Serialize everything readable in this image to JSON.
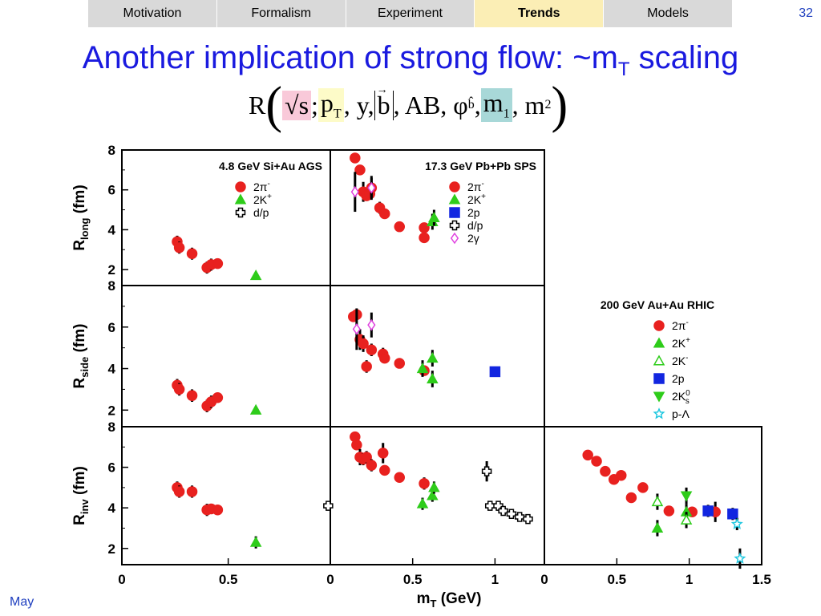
{
  "nav": {
    "tabs": [
      "Motivation",
      "Formalism",
      "Experiment",
      "Trends",
      "Models"
    ],
    "active": "Trends"
  },
  "page_number": "32",
  "title": {
    "main": "Another implication of strong flow: ~m",
    "sub": "T",
    "tail": " scaling"
  },
  "formula": {
    "R": "R",
    "sqrt_s": "√s",
    "sep": ";",
    "pT": "p",
    "pT_sub": "T",
    "rest1": ", y, ",
    "b": "b",
    "rest2": ", AB, φ",
    "phi_sub": "b̂",
    "comma": ",",
    "m1": "m",
    "m1_sub": "1",
    "m2": ", m",
    "m2_sub": "2",
    "colors": {
      "sqrt_s": "#f9c9d9",
      "pT": "#fdfbc8",
      "m1": "#a8d8d8"
    }
  },
  "footer": "May",
  "chart_data": {
    "type": "scatter",
    "xlabel": "m",
    "xlabel_sub": "T",
    "xlabel_unit": " (GeV)",
    "ylabels": [
      {
        "main": "R",
        "sub": "long",
        "unit": " (fm)"
      },
      {
        "main": "R",
        "sub": "side",
        "unit": " (fm)"
      },
      {
        "main": "R",
        "sub": "inv",
        "unit": " (fm)"
      }
    ],
    "ylim": [
      1.2,
      8
    ],
    "yticks": [
      "2",
      "4",
      "6",
      "8"
    ],
    "columns": [
      {
        "xlim": [
          0,
          0.98
        ],
        "xticks": [
          [
            "0",
            0
          ],
          [
            "0.5",
            0.5
          ]
        ]
      },
      {
        "xlim": [
          0,
          1.3
        ],
        "xticks": [
          [
            "0",
            0
          ],
          [
            "0.5",
            0.5
          ],
          [
            "1",
            1
          ]
        ]
      },
      {
        "xlim": [
          0,
          1.5
        ],
        "xticks": [
          [
            "0",
            0
          ],
          [
            "0.5",
            0.5
          ],
          [
            "1",
            1
          ],
          [
            "1.5",
            1.5
          ]
        ]
      }
    ],
    "series_styles": {
      "pi": {
        "shape": "circle",
        "fill": "#e8211f",
        "stroke": "#e8211f"
      },
      "K": {
        "shape": "triangle-up",
        "fill": "#2ecc1a",
        "stroke": "#2ecc1a"
      },
      "Kminus": {
        "shape": "triangle-up",
        "fill": "#ffffff",
        "stroke": "#2ecc1a"
      },
      "p": {
        "shape": "square",
        "fill": "#1226e0",
        "stroke": "#1226e0"
      },
      "dp": {
        "shape": "cross",
        "fill": "#ffffff",
        "stroke": "#000000"
      },
      "gamma": {
        "shape": "diamond",
        "fill": "#ffffff",
        "stroke": "#e040e0"
      },
      "Ks": {
        "shape": "triangle-down",
        "fill": "#2ecc1a",
        "stroke": "#2ecc1a"
      },
      "lambda": {
        "shape": "star",
        "fill": "#ffffff",
        "stroke": "#22c8e0"
      }
    },
    "panels": [
      {
        "row": 0,
        "col": 0,
        "label": "4.8 GeV Si+Au AGS",
        "legend": [
          {
            "style": "pi",
            "text": "2π",
            "sup": "-"
          },
          {
            "style": "K",
            "text": "2K",
            "sup": "+"
          },
          {
            "style": "dp",
            "text": "d/p",
            "sup": ""
          }
        ],
        "series": [
          {
            "style": "pi",
            "points": [
              [
                0.26,
                3.4,
                0.3
              ],
              [
                0.27,
                3.1,
                0.3
              ],
              [
                0.33,
                2.8,
                0.3
              ],
              [
                0.4,
                2.1,
                0.3
              ],
              [
                0.42,
                2.25,
                0.3
              ],
              [
                0.45,
                2.3,
                0.2
              ]
            ]
          },
          {
            "style": "K",
            "points": [
              [
                0.63,
                1.7,
                0
              ]
            ]
          }
        ]
      },
      {
        "row": 0,
        "col": 1,
        "label": "17.3 GeV Pb+Pb SPS",
        "legend": [
          {
            "style": "pi",
            "text": "2π",
            "sup": "-"
          },
          {
            "style": "K",
            "text": "2K",
            "sup": "+"
          },
          {
            "style": "p",
            "text": "2p",
            "sup": ""
          },
          {
            "style": "dp",
            "text": "d/p",
            "sup": ""
          },
          {
            "style": "gamma",
            "text": "2γ",
            "sup": ""
          }
        ],
        "series": [
          {
            "style": "pi",
            "points": [
              [
                0.15,
                7.6,
                0
              ],
              [
                0.18,
                7.0,
                0
              ],
              [
                0.2,
                5.9,
                0.5
              ],
              [
                0.22,
                5.7,
                0
              ],
              [
                0.24,
                5.8,
                0
              ],
              [
                0.25,
                6.1,
                0.5
              ],
              [
                0.3,
                5.1,
                0.3
              ],
              [
                0.33,
                4.8,
                0.2
              ],
              [
                0.42,
                4.15,
                0
              ],
              [
                0.57,
                3.6,
                0
              ],
              [
                0.57,
                4.1,
                0
              ]
            ]
          },
          {
            "style": "K",
            "points": [
              [
                0.62,
                4.4,
                0.4
              ],
              [
                0.63,
                4.6,
                0.4
              ]
            ]
          },
          {
            "style": "gamma",
            "points": [
              [
                0.15,
                5.9,
                1.0
              ],
              [
                0.25,
                6.1,
                0.6
              ]
            ]
          }
        ]
      },
      {
        "row": 1,
        "col": 0,
        "label": "",
        "legend": [],
        "series": [
          {
            "style": "pi",
            "points": [
              [
                0.26,
                3.2,
                0.3
              ],
              [
                0.27,
                3.0,
                0.3
              ],
              [
                0.33,
                2.7,
                0.3
              ],
              [
                0.4,
                2.2,
                0.3
              ],
              [
                0.42,
                2.4,
                0.3
              ],
              [
                0.45,
                2.6,
                0.2
              ]
            ]
          },
          {
            "style": "K",
            "points": [
              [
                0.63,
                2.0,
                0
              ]
            ]
          }
        ]
      },
      {
        "row": 1,
        "col": 1,
        "label": "",
        "legend": [],
        "series": [
          {
            "style": "pi",
            "points": [
              [
                0.14,
                6.5,
                0
              ],
              [
                0.16,
                6.6,
                0
              ],
              [
                0.18,
                5.4,
                0.5
              ],
              [
                0.2,
                5.2,
                0.4
              ],
              [
                0.22,
                4.1,
                0.3
              ],
              [
                0.25,
                4.9,
                0.3
              ],
              [
                0.32,
                4.7,
                0.3
              ],
              [
                0.33,
                4.5,
                0.2
              ],
              [
                0.42,
                4.25,
                0
              ],
              [
                0.57,
                3.9,
                0
              ]
            ]
          },
          {
            "style": "K",
            "points": [
              [
                0.56,
                4.0,
                0.4
              ],
              [
                0.62,
                4.5,
                0.4
              ],
              [
                0.62,
                3.5,
                0.4
              ]
            ]
          },
          {
            "style": "p",
            "points": [
              [
                1.0,
                3.85,
                0
              ]
            ]
          },
          {
            "style": "gamma",
            "points": [
              [
                0.16,
                5.9,
                1.0
              ],
              [
                0.25,
                6.1,
                0.6
              ]
            ]
          }
        ]
      },
      {
        "row": 2,
        "col": 0,
        "label": "",
        "legend": [],
        "series": [
          {
            "style": "pi",
            "points": [
              [
                0.26,
                5.0,
                0.3
              ],
              [
                0.27,
                4.8,
                0.3
              ],
              [
                0.33,
                4.8,
                0.3
              ],
              [
                0.4,
                3.9,
                0.3
              ],
              [
                0.42,
                3.95,
                0.2
              ],
              [
                0.45,
                3.9,
                0.2
              ]
            ]
          },
          {
            "style": "K",
            "points": [
              [
                0.63,
                2.3,
                0.3
              ]
            ]
          },
          {
            "style": "dp",
            "points": [
              [
                0.97,
                4.1,
                0
              ]
            ]
          }
        ]
      },
      {
        "row": 2,
        "col": 1,
        "label": "",
        "legend": [],
        "series": [
          {
            "style": "pi",
            "points": [
              [
                0.15,
                7.5,
                0
              ],
              [
                0.16,
                7.1,
                0.2
              ],
              [
                0.18,
                6.5,
                0.4
              ],
              [
                0.2,
                6.4,
                0.3
              ],
              [
                0.22,
                6.5,
                0.3
              ],
              [
                0.25,
                6.1,
                0.3
              ],
              [
                0.32,
                6.7,
                0.5
              ],
              [
                0.33,
                5.85,
                0.2
              ],
              [
                0.42,
                5.5,
                0
              ],
              [
                0.57,
                5.2,
                0.3
              ]
            ]
          },
          {
            "style": "K",
            "points": [
              [
                0.56,
                4.2,
                0.3
              ],
              [
                0.62,
                4.6,
                0.3
              ],
              [
                0.63,
                5.0,
                0.3
              ]
            ]
          },
          {
            "style": "dp",
            "points": [
              [
                0.95,
                5.8,
                0.5
              ],
              [
                0.97,
                4.1,
                0.2
              ],
              [
                1.02,
                4.1,
                0.2
              ],
              [
                1.05,
                3.85,
                0.2
              ],
              [
                1.1,
                3.7,
                0.2
              ],
              [
                1.15,
                3.55,
                0.2
              ],
              [
                1.2,
                3.45,
                0.2
              ]
            ]
          }
        ]
      },
      {
        "row": 2,
        "col": 2,
        "label": "",
        "legend": [],
        "series": [
          {
            "style": "pi",
            "points": [
              [
                0.3,
                6.6,
                0
              ],
              [
                0.36,
                6.3,
                0
              ],
              [
                0.42,
                5.8,
                0
              ],
              [
                0.48,
                5.4,
                0
              ],
              [
                0.53,
                5.6,
                0
              ],
              [
                0.6,
                4.5,
                0
              ],
              [
                0.68,
                5.0,
                0
              ],
              [
                0.86,
                3.85,
                0.2
              ],
              [
                1.02,
                3.8,
                0
              ],
              [
                1.18,
                3.8,
                0.5
              ]
            ]
          },
          {
            "style": "K",
            "points": [
              [
                0.78,
                3.0,
                0.4
              ],
              [
                0.98,
                3.8,
                0.4
              ]
            ]
          },
          {
            "style": "Kminus",
            "points": [
              [
                0.78,
                4.3,
                0.4
              ],
              [
                0.98,
                3.4,
                0.4
              ]
            ]
          },
          {
            "style": "Ks",
            "points": [
              [
                0.98,
                4.6,
                0.4
              ]
            ]
          },
          {
            "style": "p",
            "points": [
              [
                1.13,
                3.85,
                0.3
              ],
              [
                1.3,
                3.7,
                0.3
              ]
            ]
          },
          {
            "style": "lambda",
            "points": [
              [
                1.33,
                3.2,
                0.3
              ],
              [
                1.35,
                1.5,
                0.5
              ]
            ]
          }
        ]
      }
    ],
    "rhic_legend": {
      "label": "200 GeV Au+Au RHIC",
      "items": [
        {
          "style": "pi",
          "text": "2π",
          "sup": "-"
        },
        {
          "style": "K",
          "text": "2K",
          "sup": "+"
        },
        {
          "style": "Kminus",
          "text": "2K",
          "sup": "-"
        },
        {
          "style": "p",
          "text": "2p",
          "sup": ""
        },
        {
          "style": "Ks",
          "text": "2K",
          "sup": "0",
          "sub2": "s"
        },
        {
          "style": "lambda",
          "text": "p-Λ",
          "sup": ""
        }
      ]
    }
  }
}
